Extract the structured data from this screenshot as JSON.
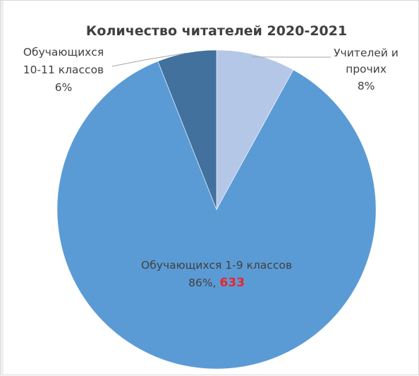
{
  "chart_data": {
    "type": "pie",
    "title": "Количество читателей 2020-2021",
    "slices": [
      {
        "key": "teachers",
        "name_lines": [
          "Учителей и",
          "прочих"
        ],
        "percent_label": "8%",
        "value": 8,
        "color": "#b4c7e7"
      },
      {
        "key": "grades19",
        "name_lines": [
          "Обучающихся 1-9 классов"
        ],
        "percent_label": "86%",
        "count_label": "633",
        "value": 86,
        "color": "#5b9bd5"
      },
      {
        "key": "grades1011",
        "name_lines": [
          "Обучающихся",
          "10-11 классов"
        ],
        "percent_label": "6%",
        "value": 6,
        "color": "#41719c"
      }
    ],
    "label_separator": ", ",
    "count_color": "#e8262b",
    "legend": "none"
  }
}
